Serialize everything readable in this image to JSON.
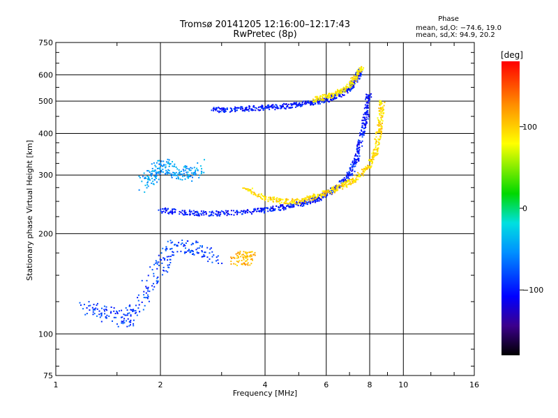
{
  "header": {
    "title_line1": "Tromsø 20141205 12:16:00–12:17:43",
    "title_line2": "RwPretec (8p)",
    "phase_title": "Phase",
    "phase_o": "mean, sd,O: −74.6, 19.0",
    "phase_x": "mean, sd,X:  94.9, 20.2"
  },
  "colorbar": {
    "label": "[deg]",
    "ticks": [
      "100",
      "0",
      "−100"
    ],
    "tick_values": [
      100,
      0,
      -100
    ],
    "range": [
      -180,
      180
    ]
  },
  "chart_data": {
    "type": "scatter",
    "xlabel": "Frequency [MHz]",
    "ylabel": "Stationary phase Virtual Height [km]",
    "xscale": "log",
    "yscale": "log",
    "xlim": [
      1,
      16
    ],
    "ylim": [
      75,
      750
    ],
    "xticks": [
      1,
      2,
      4,
      6,
      8,
      10,
      16
    ],
    "xtick_labels": [
      "1",
      "2",
      "4",
      "6",
      "8",
      "10",
      "16"
    ],
    "yticks": [
      75,
      100,
      200,
      300,
      400,
      500,
      600,
      750
    ],
    "ytick_labels": [
      "75",
      "100",
      "200",
      "300",
      "400",
      "500",
      "600",
      "750"
    ],
    "grid": true,
    "colorscale": "rainbow phase (deg)",
    "traces": [
      {
        "name": "",
        "points": [
          [
            2.8,
            470
          ],
          [
            3.2,
            472
          ],
          [
            3.6,
            475
          ],
          [
            4.0,
            478
          ],
          [
            4.5,
            482
          ],
          [
            5.0,
            488
          ],
          [
            5.5,
            495
          ],
          [
            6.0,
            505
          ],
          [
            6.5,
            520
          ],
          [
            7.0,
            545
          ],
          [
            7.3,
            575
          ],
          [
            7.5,
            615
          ]
        ],
        "phase": -100
      },
      {
        "name": "",
        "points": [
          [
            2.0,
            235
          ],
          [
            2.3,
            232
          ],
          [
            2.6,
            230
          ],
          [
            3.0,
            230
          ],
          [
            3.5,
            232
          ],
          [
            4.0,
            235
          ],
          [
            4.5,
            240
          ],
          [
            5.0,
            245
          ],
          [
            5.5,
            252
          ],
          [
            6.0,
            262
          ],
          [
            6.5,
            278
          ],
          [
            7.0,
            300
          ],
          [
            7.3,
            330
          ],
          [
            7.5,
            370
          ],
          [
            7.7,
            420
          ],
          [
            7.85,
            470
          ],
          [
            7.95,
            520
          ]
        ],
        "phase": -100
      },
      {
        "name": "",
        "points": [
          [
            3.5,
            275
          ],
          [
            4.0,
            255
          ],
          [
            4.5,
            250
          ],
          [
            5.0,
            250
          ],
          [
            5.5,
            258
          ],
          [
            6.0,
            265
          ],
          [
            6.5,
            275
          ],
          [
            7.0,
            285
          ],
          [
            7.5,
            300
          ],
          [
            8.0,
            320
          ],
          [
            8.3,
            350
          ],
          [
            8.5,
            400
          ],
          [
            8.6,
            450
          ],
          [
            8.7,
            500
          ]
        ],
        "phase": 95
      },
      {
        "name": "",
        "points": [
          [
            5.5,
            505
          ],
          [
            6.0,
            515
          ],
          [
            6.5,
            530
          ],
          [
            7.0,
            555
          ],
          [
            7.3,
            590
          ],
          [
            7.6,
            630
          ]
        ],
        "phase": 90
      },
      {
        "name": "",
        "points": [
          [
            1.8,
            280
          ],
          [
            1.9,
            300
          ],
          [
            2.0,
            320
          ],
          [
            2.2,
            310
          ],
          [
            2.4,
            300
          ],
          [
            2.6,
            320
          ]
        ],
        "phase": -50
      },
      {
        "name": "",
        "points": [
          [
            1.2,
            120
          ],
          [
            1.4,
            115
          ],
          [
            1.6,
            110
          ],
          [
            1.8,
            130
          ],
          [
            2.0,
            160
          ],
          [
            2.2,
            185
          ],
          [
            2.5,
            180
          ],
          [
            2.9,
            170
          ]
        ],
        "phase": -85
      },
      {
        "name": "",
        "points": [
          [
            3.3,
            170
          ],
          [
            3.5,
            168
          ],
          [
            3.6,
            172
          ]
        ],
        "phase": 110
      }
    ]
  }
}
